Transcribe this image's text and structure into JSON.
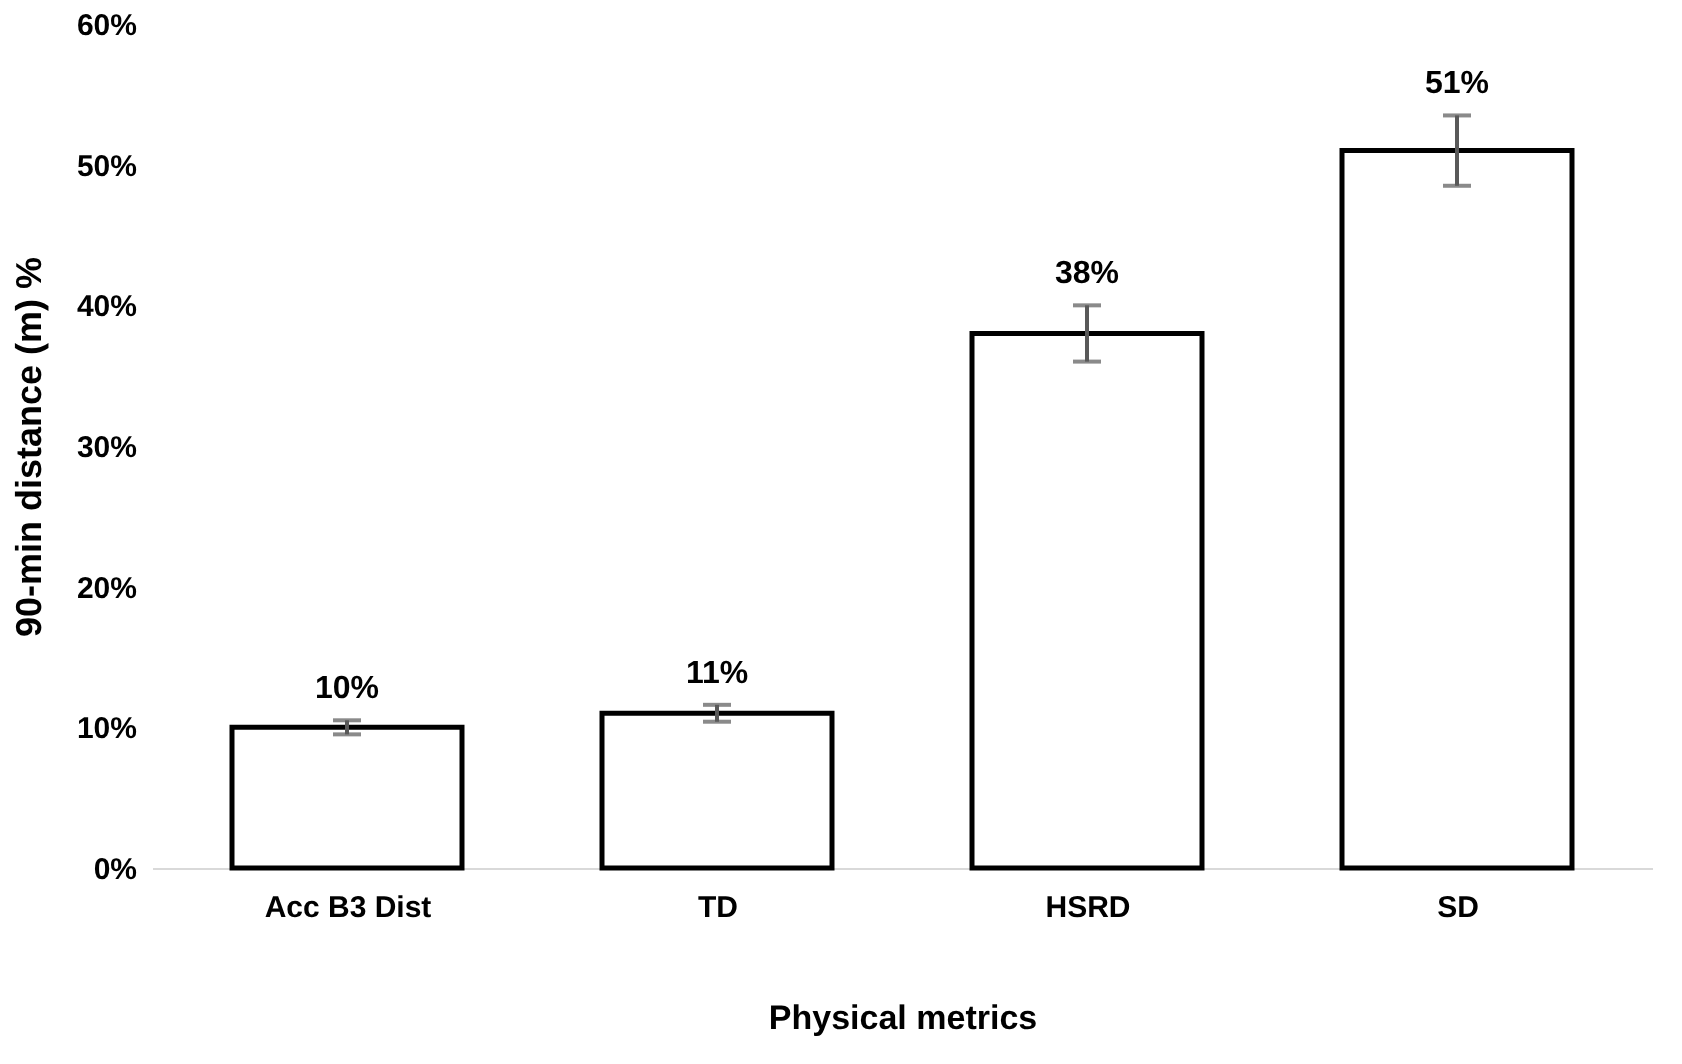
{
  "chart_data": {
    "type": "bar",
    "xlabel": "Physical metrics",
    "ylabel": "90-min distance (m) %",
    "categories": [
      "Acc B3 Dist",
      "TD",
      "HSRD",
      "SD"
    ],
    "series": [
      {
        "color": "#ffffff",
        "values": [
          10,
          11,
          38,
          51
        ],
        "errors": [
          0.5,
          0.6,
          2,
          2.5
        ],
        "value_labels": [
          "10%",
          "11%",
          "38%",
          "51%"
        ]
      }
    ],
    "ylim": [
      0,
      60
    ],
    "yticks": [
      {
        "value": 0,
        "label": "0%"
      },
      {
        "value": 10,
        "label": "10%"
      },
      {
        "value": 20,
        "label": "20%"
      },
      {
        "value": 30,
        "label": "30%"
      },
      {
        "value": 40,
        "label": "40%"
      },
      {
        "value": 50,
        "label": "50%"
      },
      {
        "value": 60,
        "label": "60%"
      }
    ],
    "grid": false
  }
}
